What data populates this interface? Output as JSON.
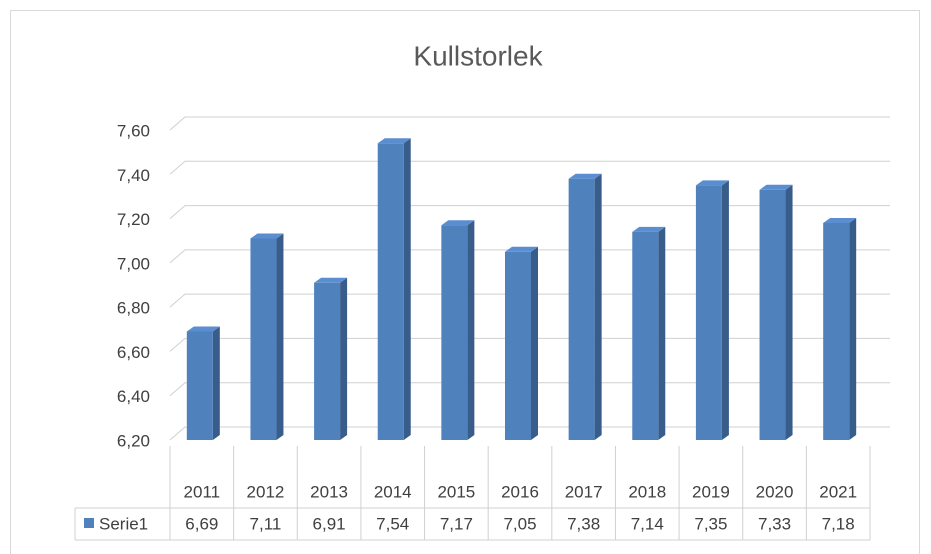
{
  "chart_data": {
    "type": "bar",
    "title": "Kullstorlek",
    "categories": [
      "2011",
      "2012",
      "2013",
      "2014",
      "2015",
      "2016",
      "2017",
      "2018",
      "2019",
      "2020",
      "2021"
    ],
    "series": [
      {
        "name": "Serie1",
        "color": "#4f81bd",
        "values": [
          6.69,
          7.11,
          6.91,
          7.54,
          7.17,
          7.05,
          7.38,
          7.14,
          7.35,
          7.33,
          7.18
        ],
        "value_labels": [
          "6,69",
          "7,11",
          "6,91",
          "7,54",
          "7,17",
          "7,05",
          "7,38",
          "7,14",
          "7,35",
          "7,33",
          "7,18"
        ]
      }
    ],
    "ylim": [
      6.2,
      7.6
    ],
    "yticks": [
      {
        "value": 6.2,
        "label": "6,20"
      },
      {
        "value": 6.4,
        "label": "6,40"
      },
      {
        "value": 6.6,
        "label": "6,60"
      },
      {
        "value": 6.8,
        "label": "6,80"
      },
      {
        "value": 7.0,
        "label": "7,00"
      },
      {
        "value": 7.2,
        "label": "7,20"
      },
      {
        "value": 7.4,
        "label": "7,40"
      },
      {
        "value": 7.6,
        "label": "7,60"
      }
    ],
    "grid": true,
    "legend": "data-table"
  }
}
